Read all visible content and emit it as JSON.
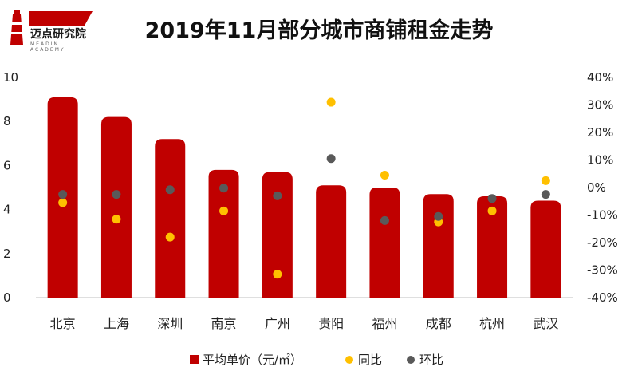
{
  "logo": {
    "name": "迈点研究院",
    "sub": "MEADIN ACADEMY"
  },
  "chart_data": {
    "type": "bar",
    "title": "2019年11月部分城市商铺租金走势",
    "categories": [
      "北京",
      "上海",
      "深圳",
      "南京",
      "广州",
      "贵阳",
      "福州",
      "成都",
      "杭州",
      "武汉"
    ],
    "ylim_left": [
      0,
      10
    ],
    "yticks_left": [
      "0",
      "2",
      "4",
      "6",
      "8",
      "10"
    ],
    "ylim_right": [
      -40,
      40
    ],
    "yticks_right": [
      "-40%",
      "-30%",
      "-20%",
      "-10%",
      "0%",
      "10%",
      "20%",
      "30%",
      "40%"
    ],
    "series": [
      {
        "name": "平均单价（元/㎡）",
        "axis": "left",
        "kind": "bar",
        "color": "#C00000",
        "values": [
          9.1,
          8.2,
          7.2,
          5.8,
          5.7,
          5.1,
          5.0,
          4.7,
          4.6,
          4.4
        ]
      },
      {
        "name": "同比",
        "axis": "right",
        "kind": "scatter",
        "color": "#FFC000",
        "values": [
          -5.5,
          -11.5,
          -18.0,
          -8.5,
          -31.5,
          31.0,
          4.5,
          -12.5,
          -8.5,
          2.5
        ]
      },
      {
        "name": "环比",
        "axis": "right",
        "kind": "scatter",
        "color": "#595959",
        "values": [
          -2.5,
          -2.5,
          -0.8,
          -0.2,
          -3.0,
          10.5,
          -12.0,
          -10.5,
          -4.0,
          -2.5
        ]
      }
    ],
    "legend": "bottom",
    "grid": false
  }
}
